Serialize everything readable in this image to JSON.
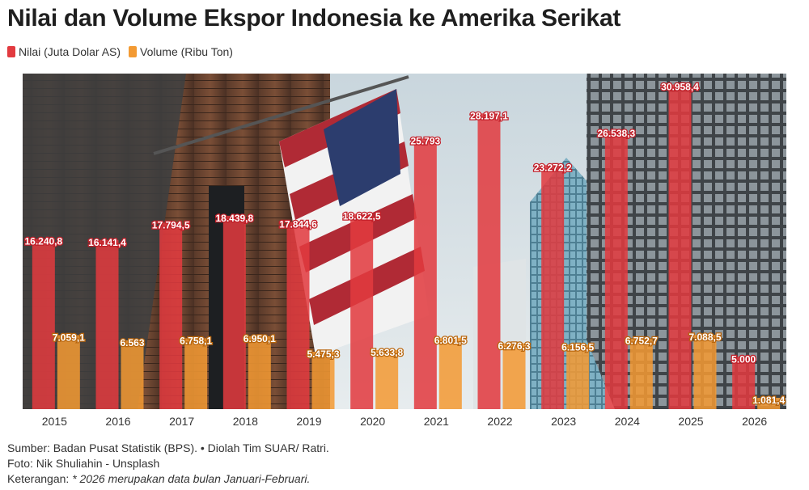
{
  "title": "Nilai dan Volume Ekspor Indonesia ke Amerika Serikat",
  "colors": {
    "nilai": "#e23a3f",
    "volume": "#f39a33"
  },
  "chart_data": {
    "type": "bar",
    "categories": [
      "2015",
      "2016",
      "2017",
      "2018",
      "2019",
      "2020",
      "2021",
      "2022",
      "2023",
      "2024",
      "2025",
      "2026"
    ],
    "series": [
      {
        "name": "Nilai (Juta Dolar AS)",
        "values": [
          16240.8,
          16141.4,
          17794.5,
          18439.8,
          17844.6,
          18622.5,
          25793,
          28197.1,
          23272.2,
          26538.3,
          30958.4,
          5000
        ],
        "labels": [
          "16.240,8",
          "16.141,4",
          "17.794,5",
          "18.439,8",
          "17.844,6",
          "18.622,5",
          "25.793",
          "28.197,1",
          "23.272,2",
          "26.538,3",
          "30.958,4",
          "5.000"
        ]
      },
      {
        "name": "Volume (Ribu Ton)",
        "values": [
          7059.1,
          6563,
          6758.1,
          6950.1,
          5475.3,
          5633.8,
          6801.5,
          6276.3,
          6156.5,
          6752.7,
          7088.5,
          1081.4
        ],
        "labels": [
          "7.059,1",
          "6.563",
          "6.758,1",
          "6.950,1",
          "5.475,3",
          "5.633,8",
          "6.801,5",
          "6.276,3",
          "6.156,5",
          "6.752,7",
          "7.088,5",
          "1.081,4"
        ]
      }
    ],
    "ylim": [
      0,
      32000
    ],
    "legend_position": "top-left",
    "background": "photo"
  },
  "footer": {
    "source": "Sumber: Badan Pusat Statistik (BPS). • Diolah Tim SUAR/ Ratri.",
    "photo": "Foto: Nik Shuliahin - Unsplash",
    "note_label": "Keterangan:",
    "note_text": "* 2026 merupakan data bulan Januari-Februari."
  }
}
